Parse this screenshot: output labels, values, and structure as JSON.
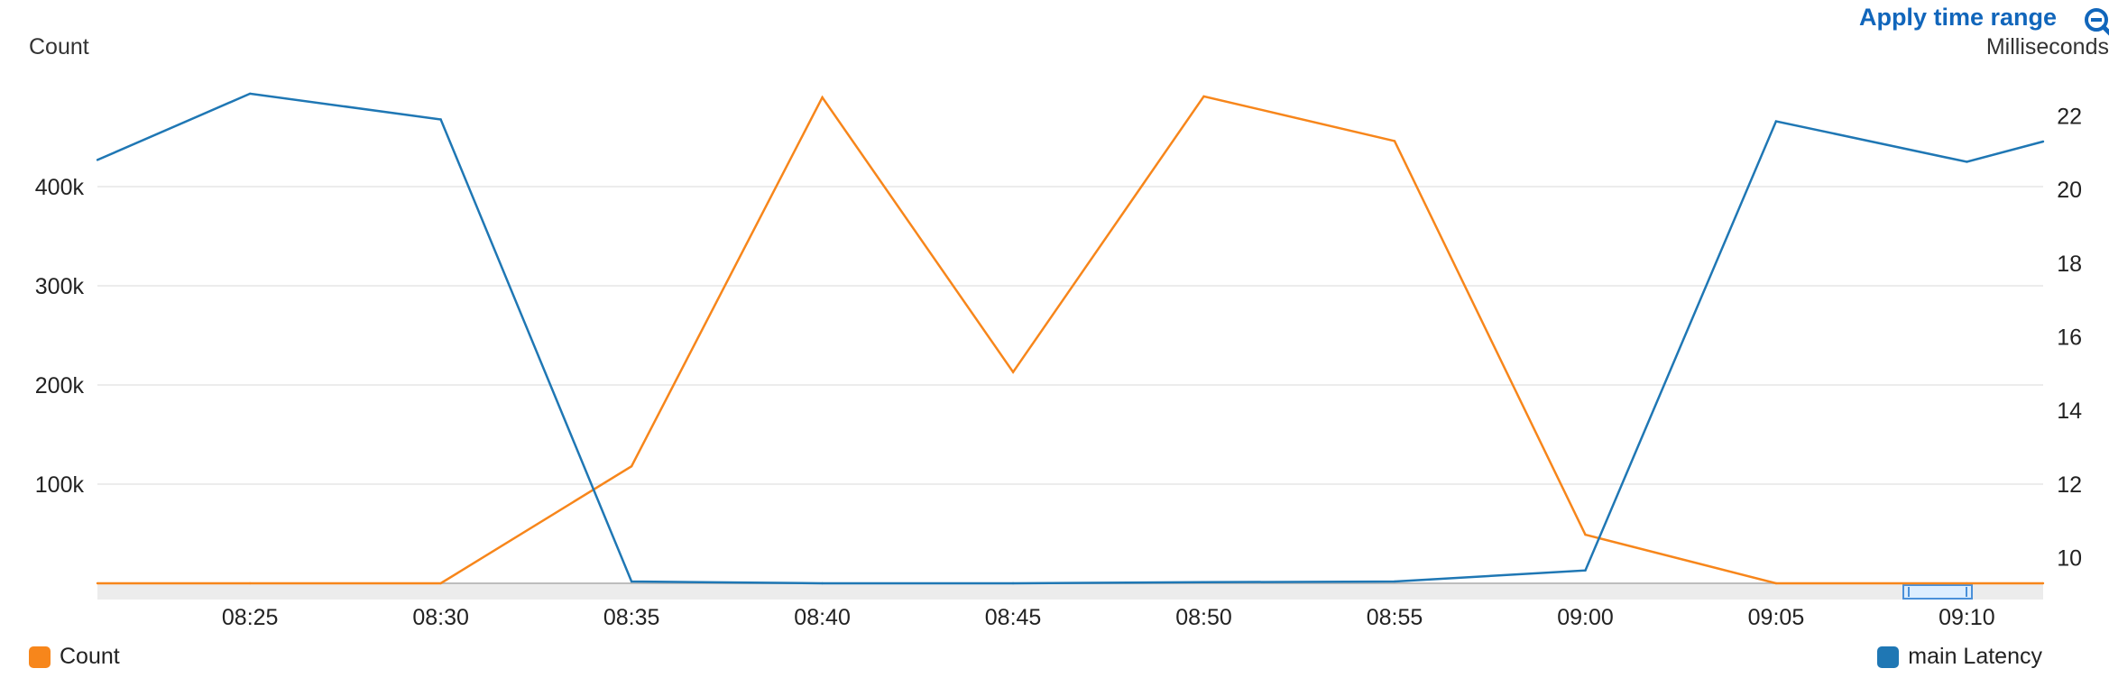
{
  "header": {
    "apply_label": "Apply time range",
    "zoom_icon": "zoom-out-icon"
  },
  "axes": {
    "left_title": "Count",
    "right_title": "Milliseconds"
  },
  "legend": {
    "count_label": "Count",
    "latency_label": "main Latency"
  },
  "colors": {
    "count": "#f7861b",
    "latency": "#1f77b4",
    "accent": "#1166bb",
    "grid": "#e6e6e6"
  },
  "chart_data": {
    "type": "line",
    "x": [
      "08:21",
      "08:25",
      "08:30",
      "08:35",
      "08:40",
      "08:45",
      "08:50",
      "08:55",
      "09:00",
      "09:05",
      "09:10",
      "09:12"
    ],
    "x_ticks": [
      "08:25",
      "08:30",
      "08:35",
      "08:40",
      "08:45",
      "08:50",
      "08:55",
      "09:00",
      "09:05",
      "09:10"
    ],
    "y_left": {
      "label": "Count",
      "ticks": [
        "100k",
        "200k",
        "300k",
        "400k"
      ],
      "ylim": [
        0,
        490000
      ]
    },
    "y_right": {
      "label": "Milliseconds",
      "ticks": [
        "10",
        "12",
        "14",
        "16",
        "18",
        "20",
        "22"
      ],
      "ylim": [
        9.3,
        22.5
      ]
    },
    "grid": true,
    "legend_position": "bottom",
    "series": [
      {
        "name": "Count",
        "axis": "left",
        "values": [
          0,
          0,
          0,
          118000,
          490000,
          213000,
          491000,
          446000,
          49000,
          0,
          0,
          0
        ]
      },
      {
        "name": "main Latency",
        "axis": "right",
        "values": [
          20.8,
          22.6,
          21.9,
          9.35,
          9.3,
          9.3,
          9.33,
          9.35,
          9.65,
          21.85,
          20.75,
          21.3
        ]
      }
    ]
  }
}
